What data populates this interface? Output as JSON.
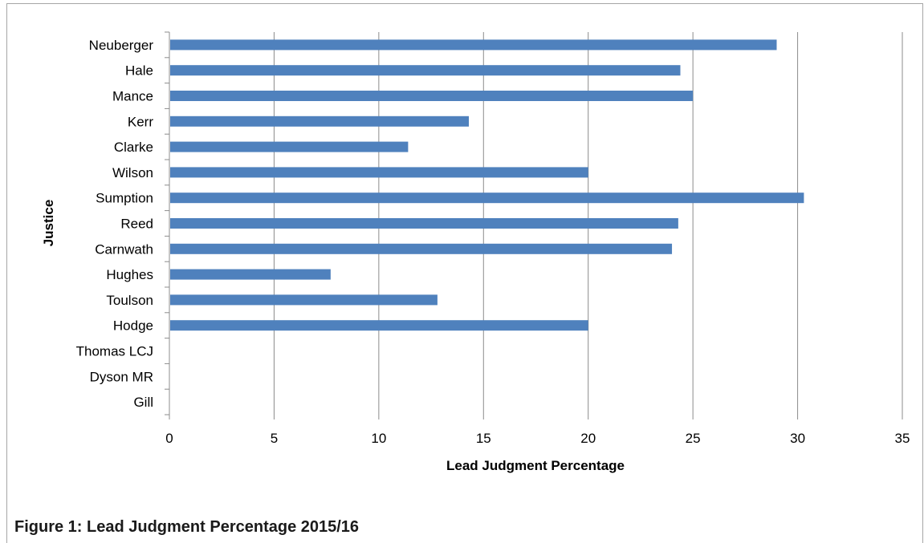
{
  "chart_data": {
    "type": "bar",
    "orientation": "horizontal",
    "categories": [
      "Neuberger",
      "Hale",
      "Mance",
      "Kerr",
      "Clarke",
      "Wilson",
      "Sumption",
      "Reed",
      "Carnwath",
      "Hughes",
      "Toulson",
      "Hodge",
      "Thomas LCJ",
      "Dyson MR",
      "Gill"
    ],
    "values": [
      29.0,
      24.4,
      25.0,
      14.3,
      11.4,
      20.0,
      30.3,
      24.3,
      24.0,
      7.7,
      12.8,
      20.0,
      0,
      0,
      0
    ],
    "title": "",
    "xlabel": "Lead Judgment Percentage",
    "ylabel": "Justice",
    "xlim": [
      0,
      35
    ],
    "xticks": [
      0,
      5,
      10,
      15,
      20,
      25,
      30,
      35
    ],
    "grid": "vertical",
    "legend": "none",
    "bar_color": "#4f81bd"
  },
  "caption": "Figure 1: Lead Judgment Percentage 2015/16",
  "colors": {
    "gridline": "#8c8c8c",
    "axis": "#8c8c8c",
    "frame": "#a6a6a6"
  }
}
